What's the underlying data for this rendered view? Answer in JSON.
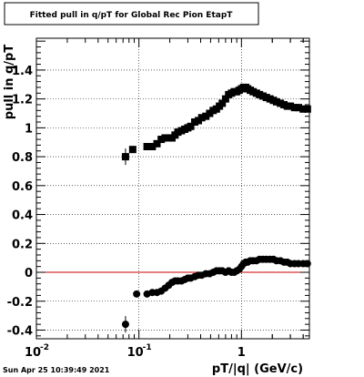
{
  "footer": {
    "timestamp": "Sun Apr 25 10:39:49 2021"
  },
  "chart_data": {
    "type": "scatter",
    "title": "Fitted pull in q/pT for Global Rec Pion EtapT",
    "xlabel": "pT/|q| (GeV/c)",
    "ylabel": "pull in q/pT",
    "xscale": "log",
    "xlim": [
      0.01,
      4.6
    ],
    "ylim": [
      -0.46,
      1.62
    ],
    "xtick_labels": [
      "10",
      "10",
      "1"
    ],
    "xtick_exponents": [
      "-2",
      "-1",
      ""
    ],
    "ytick_labels": [
      "-0.4",
      "-0.2",
      "0",
      "0.2",
      "0.4",
      "0.6",
      "0.8",
      "1",
      "1.2",
      "1.4"
    ],
    "grid": true,
    "reference_line": {
      "y": 0,
      "color": "#cc0000"
    },
    "series": [
      {
        "marker": "square",
        "values": [
          [
            0.074,
            0.8
          ],
          [
            0.087,
            0.85
          ],
          [
            0.12,
            0.87
          ],
          [
            0.135,
            0.87
          ],
          [
            0.15,
            0.89
          ],
          [
            0.165,
            0.92
          ],
          [
            0.18,
            0.93
          ],
          [
            0.195,
            0.93
          ],
          [
            0.21,
            0.93
          ],
          [
            0.225,
            0.95
          ],
          [
            0.24,
            0.97
          ],
          [
            0.26,
            0.98
          ],
          [
            0.28,
            0.99
          ],
          [
            0.3,
            1.0
          ],
          [
            0.32,
            1.01
          ],
          [
            0.35,
            1.04
          ],
          [
            0.38,
            1.05
          ],
          [
            0.41,
            1.07
          ],
          [
            0.45,
            1.08
          ],
          [
            0.49,
            1.1
          ],
          [
            0.53,
            1.12
          ],
          [
            0.57,
            1.13
          ],
          [
            0.61,
            1.15
          ],
          [
            0.65,
            1.17
          ],
          [
            0.7,
            1.2
          ],
          [
            0.75,
            1.23
          ],
          [
            0.8,
            1.24
          ],
          [
            0.85,
            1.25
          ],
          [
            0.9,
            1.25
          ],
          [
            0.95,
            1.26
          ],
          [
            1.0,
            1.27
          ],
          [
            1.05,
            1.28
          ],
          [
            1.1,
            1.28
          ],
          [
            1.15,
            1.27
          ],
          [
            1.22,
            1.26
          ],
          [
            1.3,
            1.25
          ],
          [
            1.4,
            1.24
          ],
          [
            1.5,
            1.23
          ],
          [
            1.62,
            1.22
          ],
          [
            1.75,
            1.21
          ],
          [
            1.9,
            1.2
          ],
          [
            2.05,
            1.19
          ],
          [
            2.2,
            1.18
          ],
          [
            2.4,
            1.17
          ],
          [
            2.6,
            1.16
          ],
          [
            2.8,
            1.15
          ],
          [
            3.0,
            1.15
          ],
          [
            3.3,
            1.14
          ],
          [
            3.6,
            1.14
          ],
          [
            4.0,
            1.13
          ],
          [
            4.4,
            1.13
          ]
        ]
      },
      {
        "marker": "circle",
        "values": [
          [
            0.074,
            -0.36
          ],
          [
            0.095,
            -0.15
          ],
          [
            0.12,
            -0.15
          ],
          [
            0.135,
            -0.14
          ],
          [
            0.15,
            -0.14
          ],
          [
            0.165,
            -0.13
          ],
          [
            0.18,
            -0.11
          ],
          [
            0.195,
            -0.09
          ],
          [
            0.21,
            -0.07
          ],
          [
            0.225,
            -0.06
          ],
          [
            0.24,
            -0.06
          ],
          [
            0.26,
            -0.06
          ],
          [
            0.28,
            -0.05
          ],
          [
            0.3,
            -0.04
          ],
          [
            0.32,
            -0.04
          ],
          [
            0.35,
            -0.03
          ],
          [
            0.38,
            -0.02
          ],
          [
            0.41,
            -0.02
          ],
          [
            0.45,
            -0.01
          ],
          [
            0.49,
            -0.01
          ],
          [
            0.53,
            0.0
          ],
          [
            0.57,
            0.01
          ],
          [
            0.61,
            0.01
          ],
          [
            0.65,
            0.01
          ],
          [
            0.7,
            0.0
          ],
          [
            0.75,
            0.01
          ],
          [
            0.8,
            0.0
          ],
          [
            0.85,
            0.0
          ],
          [
            0.9,
            0.01
          ],
          [
            0.95,
            0.02
          ],
          [
            1.0,
            0.04
          ],
          [
            1.05,
            0.06
          ],
          [
            1.1,
            0.07
          ],
          [
            1.15,
            0.07
          ],
          [
            1.22,
            0.08
          ],
          [
            1.3,
            0.08
          ],
          [
            1.4,
            0.08
          ],
          [
            1.5,
            0.09
          ],
          [
            1.62,
            0.09
          ],
          [
            1.75,
            0.09
          ],
          [
            1.9,
            0.09
          ],
          [
            2.05,
            0.09
          ],
          [
            2.2,
            0.08
          ],
          [
            2.4,
            0.08
          ],
          [
            2.6,
            0.07
          ],
          [
            2.8,
            0.07
          ],
          [
            3.0,
            0.06
          ],
          [
            3.3,
            0.06
          ],
          [
            3.6,
            0.06
          ],
          [
            4.0,
            0.06
          ],
          [
            4.4,
            0.06
          ]
        ]
      }
    ]
  }
}
